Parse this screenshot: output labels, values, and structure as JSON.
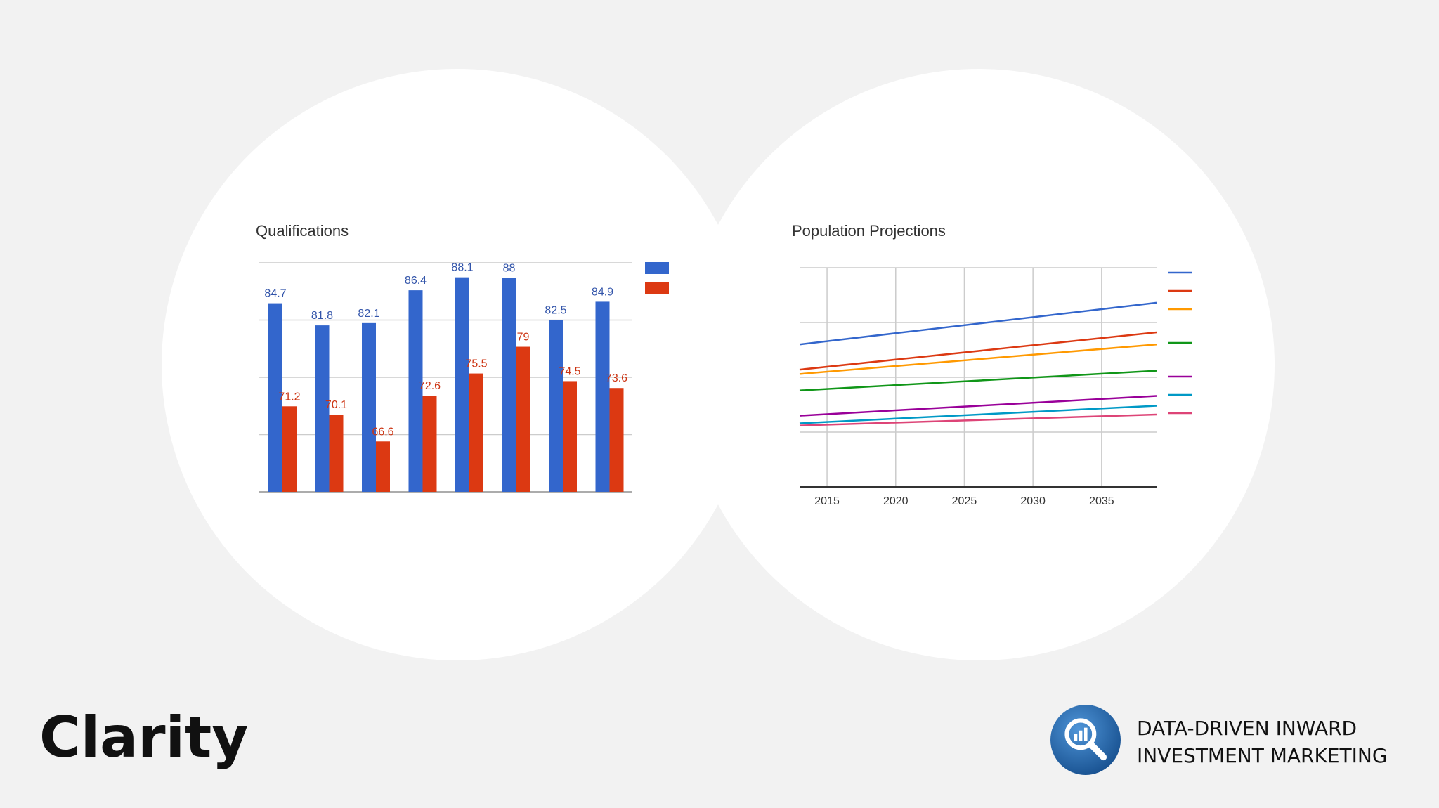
{
  "brand": {
    "name": "Clarity"
  },
  "tagline": {
    "line1": "DATA-DRIVEN INWARD",
    "line2": "INVESTMENT MARKETING"
  },
  "logo": {
    "icon": "magnifier-chart-icon",
    "color": "#1f5fa8"
  },
  "chart_data": [
    {
      "type": "bar",
      "title": "Qualifications",
      "xlabel": "",
      "ylabel": "",
      "categories": [
        "",
        "",
        "",
        "",
        "",
        "",
        "",
        ""
      ],
      "series": [
        {
          "color": "#3366cc",
          "values": [
            84.7,
            81.8,
            82.1,
            86.4,
            88.1,
            88,
            82.5,
            84.9
          ]
        },
        {
          "color": "#dc3912",
          "values": [
            71.2,
            70.1,
            66.6,
            72.6,
            75.5,
            79,
            74.5,
            73.6
          ]
        }
      ],
      "data_labels": true,
      "legend_position": "right",
      "grid": true
    },
    {
      "type": "line",
      "title": "Population Projections",
      "xlabel": "",
      "ylabel": "",
      "x": [
        2013,
        2039
      ],
      "x_ticks": [
        "2015",
        "2020",
        "2025",
        "2030",
        "2035"
      ],
      "x_tick_values": [
        2015,
        2020,
        2025,
        2030,
        2035
      ],
      "series": [
        {
          "color": "#3366cc",
          "values": [
            0.65,
            0.84
          ]
        },
        {
          "color": "#dc3912",
          "values": [
            0.535,
            0.705
          ]
        },
        {
          "color": "#ff9900",
          "values": [
            0.515,
            0.65
          ]
        },
        {
          "color": "#109618",
          "values": [
            0.44,
            0.53
          ]
        },
        {
          "color": "#990099",
          "values": [
            0.325,
            0.415
          ]
        },
        {
          "color": "#0099c6",
          "values": [
            0.29,
            0.37
          ]
        },
        {
          "color": "#dd4477",
          "values": [
            0.28,
            0.33
          ]
        }
      ],
      "legend_position": "right",
      "grid": true
    }
  ]
}
